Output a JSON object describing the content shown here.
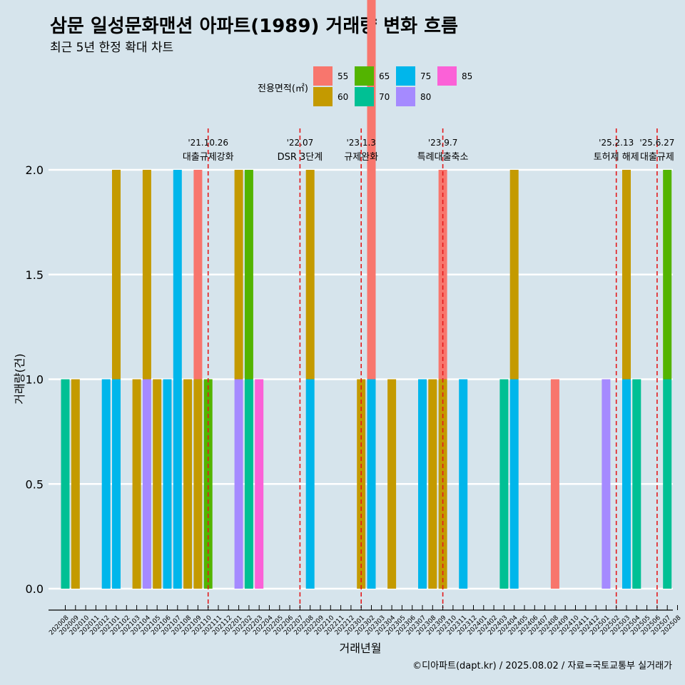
{
  "title": "삼문 일성문화맨션 아파트(1989) 거래량 변화 흐름",
  "subtitle": "최근 5년 한정 확대 차트",
  "caption": "©디아파트(dapt.kr) / 2025.08.02 / 자료=국토교통부 실거래가",
  "colors": {
    "background": "#d6e4ec",
    "grid": "#ffffff",
    "event_line": "#e31a1c",
    "55": "#f8766d",
    "60": "#c49a00",
    "65": "#53b400",
    "70": "#00c094",
    "75": "#00b6eb",
    "80": "#a58aff",
    "85": "#fb61d7"
  },
  "chart_data": {
    "type": "bar",
    "xlabel": "거래년월",
    "ylabel": "거래량(건)",
    "ylim": [
      0,
      2.0
    ],
    "yticks": [
      "0.0",
      "0.5",
      "1.0",
      "1.5",
      "2.0"
    ],
    "grid": true,
    "legend": {
      "title": "전용면적(㎡)",
      "position": "top",
      "entries": [
        "55",
        "60",
        "65",
        "70",
        "75",
        "80",
        "85"
      ]
    },
    "categories": [
      "202008",
      "202009",
      "202010",
      "202011",
      "202012",
      "202101",
      "202102",
      "202103",
      "202104",
      "202105",
      "202106",
      "202107",
      "202108",
      "202109",
      "202110",
      "202111",
      "202112",
      "202201",
      "202202",
      "202203",
      "202204",
      "202205",
      "202206",
      "202207",
      "202208",
      "202209",
      "202210",
      "202211",
      "202212",
      "202301",
      "202302",
      "202303",
      "202304",
      "202305",
      "202306",
      "202307",
      "202308",
      "202309",
      "202310",
      "202311",
      "202312",
      "202401",
      "202402",
      "202403",
      "202404",
      "202405",
      "202406",
      "202407",
      "202408",
      "202409",
      "202410",
      "202411",
      "202412",
      "202501",
      "202502",
      "202503",
      "202504",
      "202505",
      "202506",
      "202507",
      "202508"
    ],
    "series": [
      {
        "name": "55",
        "values": [
          [
            "202109",
            1
          ],
          [
            "202302",
            2
          ],
          [
            "202309",
            1
          ],
          [
            "202408",
            1
          ]
        ]
      },
      {
        "name": "60",
        "values": [
          [
            "202009",
            1
          ],
          [
            "202101",
            1
          ],
          [
            "202103",
            1
          ],
          [
            "202104",
            1
          ],
          [
            "202105",
            1
          ],
          [
            "202108",
            1
          ],
          [
            "202109",
            1
          ],
          [
            "202201",
            1
          ],
          [
            "202208",
            1
          ],
          [
            "202301",
            1
          ],
          [
            "202304",
            1
          ],
          [
            "202308",
            1
          ],
          [
            "202309",
            1
          ],
          [
            "202404",
            1
          ],
          [
            "202503",
            1
          ]
        ]
      },
      {
        "name": "65",
        "values": [
          [
            "202110",
            1
          ],
          [
            "202202",
            1
          ],
          [
            "202507",
            1
          ]
        ]
      },
      {
        "name": "70",
        "values": [
          [
            "202008",
            1
          ],
          [
            "202202",
            1
          ],
          [
            "202403",
            1
          ],
          [
            "202504",
            1
          ],
          [
            "202507",
            1
          ]
        ]
      },
      {
        "name": "75",
        "values": [
          [
            "202012",
            1
          ],
          [
            "202101",
            1
          ],
          [
            "202106",
            1
          ],
          [
            "202107",
            2
          ],
          [
            "202208",
            1
          ],
          [
            "202302",
            1
          ],
          [
            "202307",
            1
          ],
          [
            "202311",
            1
          ],
          [
            "202404",
            1
          ],
          [
            "202503",
            1
          ]
        ]
      },
      {
        "name": "80",
        "values": [
          [
            "202104",
            1
          ],
          [
            "202201",
            1
          ],
          [
            "202501",
            1
          ]
        ]
      },
      {
        "name": "85",
        "values": [
          [
            "202203",
            1
          ]
        ]
      }
    ],
    "annotations": [
      {
        "date": "'21.10.26",
        "label": "대출규제강화",
        "x": "202110"
      },
      {
        "date": "'22.07",
        "label": "DSR 3단계",
        "x": "202207"
      },
      {
        "date": "'23.1.3",
        "label": "규제완화",
        "x": "202301"
      },
      {
        "date": "'23.9.7",
        "label": "특례대출축소",
        "x": "202309"
      },
      {
        "date": "'25.2.13",
        "label": "토허제 해제",
        "x": "202502"
      },
      {
        "date": "'25.6.27",
        "label": "대출규제",
        "x": "202506"
      }
    ]
  }
}
